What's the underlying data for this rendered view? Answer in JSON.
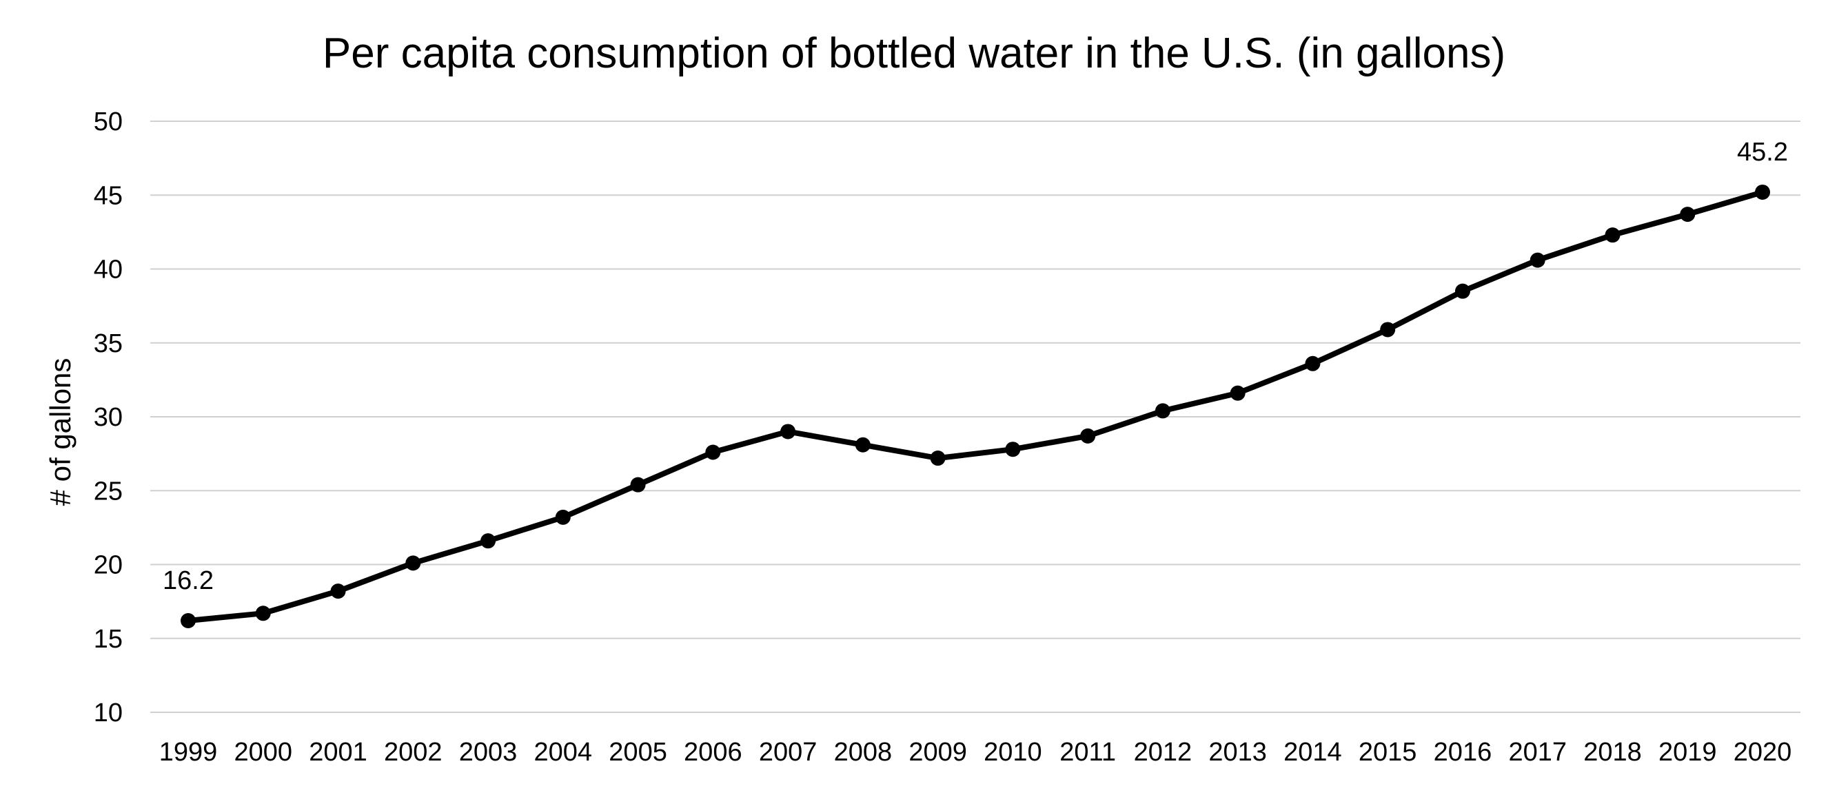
{
  "chart_data": {
    "type": "line",
    "title": "Per capita consumption of bottled water in the U.S. (in gallons)",
    "xlabel": "",
    "ylabel": "# of gallons",
    "ylim": [
      10,
      50
    ],
    "yticks": [
      "10",
      "15",
      "20",
      "25",
      "30",
      "35",
      "40",
      "45",
      "50"
    ],
    "grid": true,
    "legend": "none",
    "categories": [
      "1999",
      "2000",
      "2001",
      "2002",
      "2003",
      "2004",
      "2005",
      "2006",
      "2007",
      "2008",
      "2009",
      "2010",
      "2011",
      "2012",
      "2013",
      "2014",
      "2015",
      "2016",
      "2017",
      "2018",
      "2019",
      "2020"
    ],
    "series": [
      {
        "values": [
          16.2,
          16.7,
          18.2,
          20.1,
          21.6,
          23.2,
          25.4,
          27.6,
          29.0,
          28.1,
          27.2,
          27.8,
          28.7,
          30.4,
          31.6,
          33.6,
          35.9,
          38.5,
          40.6,
          42.3,
          43.7,
          45.2
        ],
        "color": "#000000"
      }
    ],
    "data_labels": [
      {
        "category": "1999",
        "text": "16.2"
      },
      {
        "category": "2020",
        "text": "45.2"
      }
    ]
  }
}
